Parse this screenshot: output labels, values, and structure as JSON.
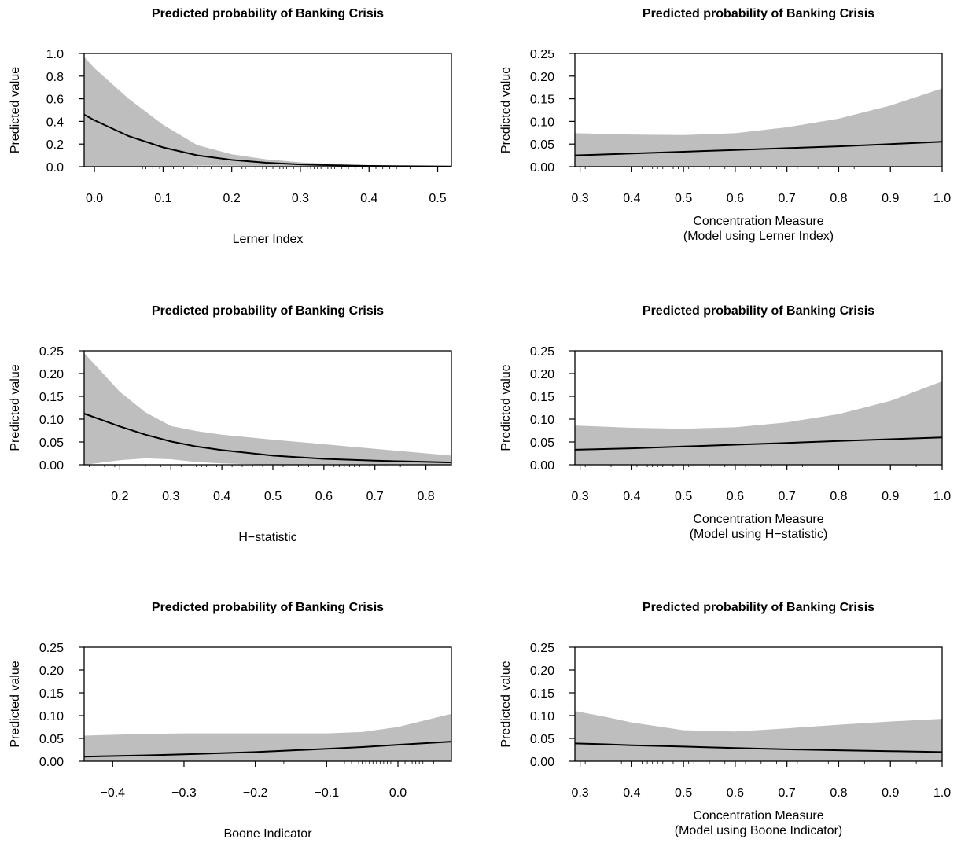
{
  "chart_data": [
    {
      "type": "line",
      "title": "Predicted probability of Banking Crisis",
      "xlabel": [
        "Lerner Index"
      ],
      "ylabel": "Predicted value",
      "xlim": [
        -0.015,
        0.52
      ],
      "ylim": [
        0,
        1.0
      ],
      "xticks": [
        0.0,
        0.1,
        0.2,
        0.3,
        0.4,
        0.5
      ],
      "xtick_labels": [
        "0.0",
        "0.1",
        "0.2",
        "0.3",
        "0.4",
        "0.5"
      ],
      "yticks": [
        0.0,
        0.2,
        0.4,
        0.6,
        0.8,
        1.0
      ],
      "ytick_labels": [
        "0.0",
        "0.2",
        "0.4",
        "0.6",
        "0.8",
        "1.0"
      ],
      "grid": false,
      "series": [
        {
          "x": [
            -0.015,
            0.0,
            0.05,
            0.1,
            0.15,
            0.2,
            0.25,
            0.3,
            0.35,
            0.4,
            0.45,
            0.52
          ],
          "fit": [
            0.46,
            0.41,
            0.27,
            0.17,
            0.1,
            0.06,
            0.035,
            0.02,
            0.012,
            0.007,
            0.004,
            0.002
          ],
          "lower": [
            0.0,
            0.0,
            0.0,
            0.0,
            0.01,
            0.008,
            0.004,
            0.002,
            0.001,
            0.0,
            0.0,
            0.0
          ],
          "upper": [
            0.97,
            0.87,
            0.6,
            0.37,
            0.19,
            0.11,
            0.065,
            0.038,
            0.022,
            0.013,
            0.008,
            0.005
          ]
        }
      ],
      "rug_x": [
        0.07,
        0.075,
        0.085,
        0.095,
        0.115,
        0.13,
        0.15,
        0.16,
        0.17,
        0.185,
        0.2,
        0.215,
        0.22,
        0.235,
        0.245,
        0.25,
        0.26,
        0.27,
        0.275,
        0.28,
        0.29,
        0.3,
        0.31,
        0.315,
        0.32,
        0.325,
        0.33,
        0.34,
        0.345,
        0.35,
        0.36,
        0.37,
        0.38,
        0.39,
        0.4,
        0.41,
        0.42,
        0.43,
        0.44,
        0.46
      ]
    },
    {
      "type": "line",
      "title": "Predicted probability of Banking Crisis",
      "xlabel": [
        "Concentration Measure",
        "(Model using Lerner Index)"
      ],
      "ylabel": "Predicted value",
      "xlim": [
        0.29,
        1.0
      ],
      "ylim": [
        0,
        0.25
      ],
      "xticks": [
        0.3,
        0.4,
        0.5,
        0.6,
        0.7,
        0.8,
        0.9,
        1.0
      ],
      "xtick_labels": [
        "0.3",
        "0.4",
        "0.5",
        "0.6",
        "0.7",
        "0.8",
        "0.9",
        "1.0"
      ],
      "yticks": [
        0.0,
        0.05,
        0.1,
        0.15,
        0.2,
        0.25
      ],
      "ytick_labels": [
        "0.00",
        "0.05",
        "0.10",
        "0.15",
        "0.20",
        "0.25"
      ],
      "grid": false,
      "series": [
        {
          "x": [
            0.29,
            0.4,
            0.5,
            0.6,
            0.7,
            0.8,
            0.9,
            1.0
          ],
          "fit": [
            0.025,
            0.029,
            0.033,
            0.037,
            0.041,
            0.045,
            0.05,
            0.055
          ],
          "lower": [
            0.0,
            0.0,
            0.0,
            0.0,
            0.0,
            0.0,
            0.0,
            0.0
          ],
          "upper": [
            0.074,
            0.071,
            0.07,
            0.074,
            0.087,
            0.106,
            0.135,
            0.173
          ]
        }
      ],
      "rug_x": [
        0.31,
        0.35,
        0.4,
        0.42,
        0.44,
        0.45,
        0.46,
        0.47,
        0.48,
        0.49,
        0.5,
        0.51,
        0.52,
        0.55,
        0.58,
        0.6,
        0.63,
        0.65,
        0.68,
        0.72,
        0.76,
        0.83,
        0.9,
        1.0
      ]
    },
    {
      "type": "line",
      "title": "Predicted probability of Banking Crisis",
      "xlabel": [
        "H−statistic"
      ],
      "ylabel": "Predicted value",
      "xlim": [
        0.13,
        0.85
      ],
      "ylim": [
        0,
        0.25
      ],
      "xticks": [
        0.2,
        0.3,
        0.4,
        0.5,
        0.6,
        0.7,
        0.8
      ],
      "xtick_labels": [
        "0.2",
        "0.3",
        "0.4",
        "0.5",
        "0.6",
        "0.7",
        "0.8"
      ],
      "yticks": [
        0.0,
        0.05,
        0.1,
        0.15,
        0.2,
        0.25
      ],
      "ytick_labels": [
        "0.00",
        "0.05",
        "0.10",
        "0.15",
        "0.20",
        "0.25"
      ],
      "grid": false,
      "series": [
        {
          "x": [
            0.13,
            0.2,
            0.25,
            0.3,
            0.35,
            0.4,
            0.5,
            0.6,
            0.7,
            0.85
          ],
          "fit": [
            0.112,
            0.084,
            0.066,
            0.051,
            0.04,
            0.032,
            0.02,
            0.013,
            0.009,
            0.005
          ],
          "lower": [
            0.0,
            0.01,
            0.014,
            0.012,
            0.006,
            0.003,
            0.0,
            0.0,
            0.0,
            0.0
          ],
          "upper": [
            0.245,
            0.16,
            0.115,
            0.085,
            0.074,
            0.066,
            0.055,
            0.045,
            0.035,
            0.02
          ]
        }
      ],
      "rug_x": [
        0.14,
        0.17,
        0.185,
        0.19,
        0.2,
        0.25,
        0.28,
        0.32,
        0.35,
        0.36,
        0.37,
        0.39,
        0.42,
        0.44,
        0.46,
        0.48,
        0.5,
        0.52,
        0.55,
        0.57,
        0.6,
        0.62,
        0.63,
        0.64,
        0.65,
        0.66,
        0.67,
        0.69,
        0.72,
        0.75,
        0.8
      ]
    },
    {
      "type": "line",
      "title": "Predicted probability of Banking Crisis",
      "xlabel": [
        "Concentration Measure",
        "(Model using H−statistic)"
      ],
      "ylabel": "Predicted value",
      "xlim": [
        0.29,
        1.0
      ],
      "ylim": [
        0,
        0.25
      ],
      "xticks": [
        0.3,
        0.4,
        0.5,
        0.6,
        0.7,
        0.8,
        0.9,
        1.0
      ],
      "xtick_labels": [
        "0.3",
        "0.4",
        "0.5",
        "0.6",
        "0.7",
        "0.8",
        "0.9",
        "1.0"
      ],
      "yticks": [
        0.0,
        0.05,
        0.1,
        0.15,
        0.2,
        0.25
      ],
      "ytick_labels": [
        "0.00",
        "0.05",
        "0.10",
        "0.15",
        "0.20",
        "0.25"
      ],
      "grid": false,
      "series": [
        {
          "x": [
            0.29,
            0.4,
            0.5,
            0.6,
            0.7,
            0.8,
            0.9,
            1.0
          ],
          "fit": [
            0.033,
            0.036,
            0.04,
            0.044,
            0.048,
            0.052,
            0.056,
            0.06
          ],
          "lower": [
            0.0,
            0.0,
            0.0,
            0.0,
            0.0,
            0.0,
            0.0,
            0.0
          ],
          "upper": [
            0.086,
            0.081,
            0.079,
            0.082,
            0.093,
            0.111,
            0.14,
            0.183
          ]
        }
      ],
      "rug_x": [
        0.31,
        0.36,
        0.4,
        0.41,
        0.43,
        0.44,
        0.45,
        0.46,
        0.47,
        0.48,
        0.5,
        0.51,
        0.52,
        0.55,
        0.58,
        0.6,
        0.62,
        0.65,
        0.67,
        0.7,
        0.73,
        0.8,
        0.95,
        1.0
      ]
    },
    {
      "type": "line",
      "title": "Predicted probability of Banking Crisis",
      "xlabel": [
        "Boone Indicator"
      ],
      "ylabel": "Predicted value",
      "xlim": [
        -0.44,
        0.075
      ],
      "ylim": [
        0,
        0.25
      ],
      "xticks": [
        -0.4,
        -0.3,
        -0.2,
        -0.1,
        0.0
      ],
      "xtick_labels": [
        "−0.4",
        "−0.3",
        "−0.2",
        "−0.1",
        "0.0"
      ],
      "yticks": [
        0.0,
        0.05,
        0.1,
        0.15,
        0.2,
        0.25
      ],
      "ytick_labels": [
        "0.00",
        "0.05",
        "0.10",
        "0.15",
        "0.20",
        "0.25"
      ],
      "grid": false,
      "series": [
        {
          "x": [
            -0.44,
            -0.35,
            -0.3,
            -0.2,
            -0.1,
            -0.05,
            0.0,
            0.075
          ],
          "fit": [
            0.01,
            0.013,
            0.015,
            0.02,
            0.027,
            0.031,
            0.036,
            0.043
          ],
          "lower": [
            0.0,
            0.0,
            0.0,
            0.0,
            0.0,
            0.0,
            0.0,
            0.0
          ],
          "upper": [
            0.056,
            0.06,
            0.061,
            0.061,
            0.061,
            0.064,
            0.075,
            0.104
          ]
        }
      ],
      "rug_x": [
        -0.16,
        -0.1,
        -0.08,
        -0.075,
        -0.07,
        -0.065,
        -0.06,
        -0.055,
        -0.05,
        -0.045,
        -0.04,
        -0.035,
        -0.03,
        -0.025,
        -0.02,
        -0.015,
        -0.01,
        0.0,
        0.01,
        0.02,
        0.025,
        0.03,
        0.035,
        0.05
      ]
    },
    {
      "type": "line",
      "title": "Predicted probability of Banking Crisis",
      "xlabel": [
        "Concentration Measure",
        "(Model using Boone Indicator)"
      ],
      "ylabel": "Predicted value",
      "xlim": [
        0.29,
        1.0
      ],
      "ylim": [
        0,
        0.25
      ],
      "xticks": [
        0.3,
        0.4,
        0.5,
        0.6,
        0.7,
        0.8,
        0.9,
        1.0
      ],
      "xtick_labels": [
        "0.3",
        "0.4",
        "0.5",
        "0.6",
        "0.7",
        "0.8",
        "0.9",
        "1.0"
      ],
      "yticks": [
        0.0,
        0.05,
        0.1,
        0.15,
        0.2,
        0.25
      ],
      "ytick_labels": [
        "0.00",
        "0.05",
        "0.10",
        "0.15",
        "0.20",
        "0.25"
      ],
      "grid": false,
      "series": [
        {
          "x": [
            0.29,
            0.35,
            0.4,
            0.5,
            0.6,
            0.7,
            0.8,
            0.9,
            1.0
          ],
          "fit": [
            0.039,
            0.037,
            0.035,
            0.032,
            0.029,
            0.026,
            0.024,
            0.022,
            0.02
          ],
          "lower": [
            0.0,
            0.0,
            0.0,
            0.0,
            0.0,
            0.0,
            0.0,
            0.0,
            0.0
          ],
          "upper": [
            0.11,
            0.097,
            0.085,
            0.068,
            0.065,
            0.072,
            0.08,
            0.087,
            0.093
          ]
        }
      ],
      "rug_x": [
        0.31,
        0.35,
        0.38,
        0.4,
        0.42,
        0.43,
        0.44,
        0.45,
        0.46,
        0.47,
        0.48,
        0.5,
        0.51,
        0.52,
        0.55,
        0.58,
        0.6,
        0.62,
        0.65,
        0.68,
        0.72,
        0.78,
        0.85,
        0.95,
        1.0
      ]
    }
  ]
}
